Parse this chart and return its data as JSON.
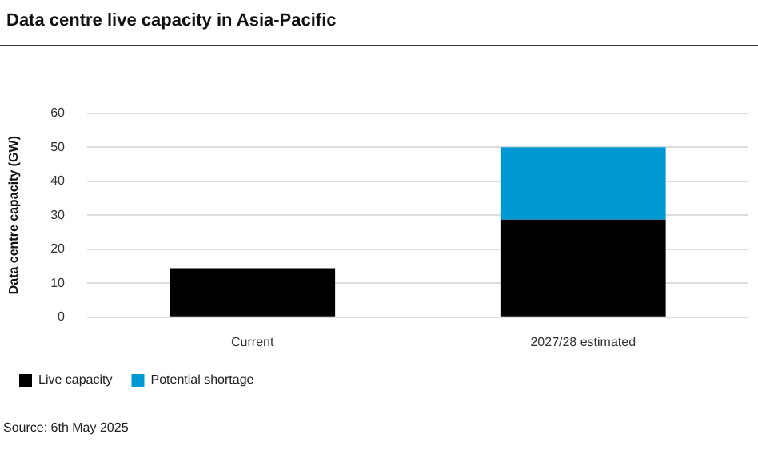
{
  "chart_data": {
    "type": "bar",
    "title": "Data centre live capacity in Asia-Pacific",
    "ylabel": "Data centre capacity (GW)",
    "categories": [
      "Current",
      "2027/28 estimated"
    ],
    "series": [
      {
        "name": "Live capacity",
        "color": "#000000",
        "values": [
          14.4,
          28.7
        ]
      },
      {
        "name": "Potential shortage",
        "color": "#0099d4",
        "values": [
          0,
          21.3
        ]
      }
    ],
    "stacked": true,
    "ylim": [
      0,
      60
    ],
    "yticks": [
      0,
      10,
      20,
      30,
      40,
      50,
      60
    ],
    "grid": "y",
    "legend": "bottom left",
    "annotations": [
      "Source: 6th May 2025"
    ]
  }
}
